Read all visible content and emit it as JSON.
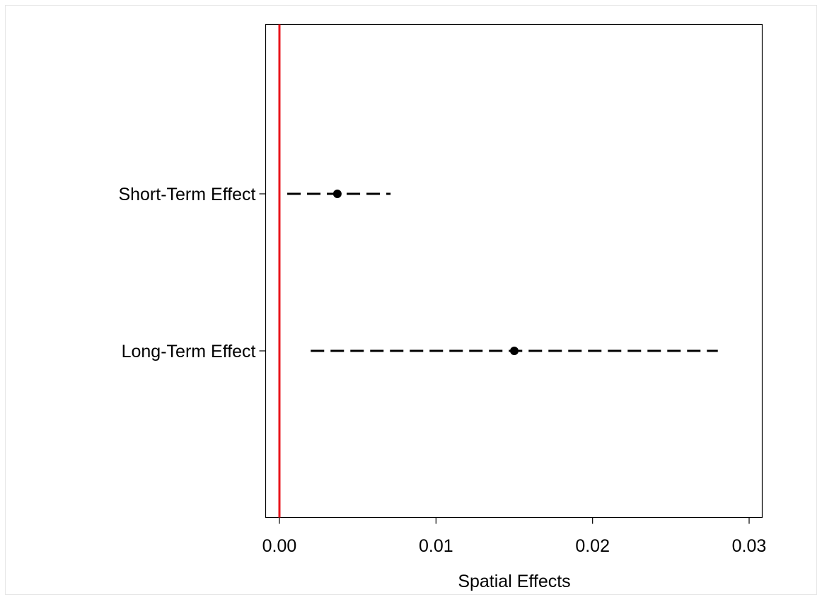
{
  "chart_data": {
    "type": "scatter",
    "title": "",
    "xlabel": "Spatial Effects",
    "ylabel": "",
    "xlim": [
      -0.0009,
      0.0309
    ],
    "xticks": [
      0.0,
      0.01,
      0.02,
      0.03
    ],
    "xtick_labels": [
      "0.00",
      "0.01",
      "0.02",
      "0.03"
    ],
    "categories": [
      "Short-Term Effect",
      "Long-Term Effect"
    ],
    "points": [
      {
        "label": "Short-Term Effect",
        "estimate": 0.0037,
        "ci_low": 0.0005,
        "ci_high": 0.0071
      },
      {
        "label": "Long-Term Effect",
        "estimate": 0.015,
        "ci_low": 0.002,
        "ci_high": 0.028
      }
    ],
    "reference_line": {
      "x": 0,
      "color": "#e8141c"
    },
    "grid": false,
    "legend": "none",
    "colors": {
      "point": "#000000",
      "ci_line": "#000000",
      "axis": "#000000",
      "reference": "#e8141c"
    }
  }
}
